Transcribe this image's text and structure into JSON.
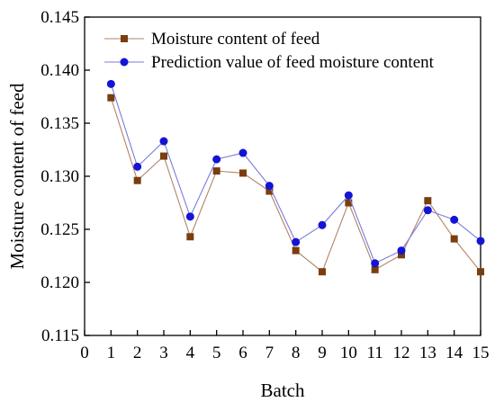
{
  "chart_data": {
    "type": "line",
    "title": "",
    "xlabel": "Batch",
    "ylabel": "Moisture content of feed",
    "xlim": [
      0,
      15
    ],
    "ylim": [
      0.115,
      0.145
    ],
    "x_ticks": [
      0,
      1,
      2,
      3,
      4,
      5,
      6,
      7,
      8,
      9,
      10,
      11,
      12,
      13,
      14,
      15
    ],
    "y_ticks": [
      0.115,
      0.12,
      0.125,
      0.13,
      0.135,
      0.14,
      0.145
    ],
    "y_tick_labels": [
      "0.115",
      "0.120",
      "0.125",
      "0.130",
      "0.135",
      "0.140",
      "0.145"
    ],
    "x": [
      1,
      2,
      3,
      4,
      5,
      6,
      7,
      8,
      9,
      10,
      11,
      12,
      13,
      14,
      15
    ],
    "grid": false,
    "legend_position": "top-left",
    "series": [
      {
        "name": "Moisture content of feed",
        "color": "#b08468",
        "marker_color": "#7a3d0e",
        "marker": "square",
        "values": [
          0.1374,
          0.1296,
          0.1319,
          0.1243,
          0.1305,
          0.1303,
          0.1286,
          0.123,
          0.121,
          0.1275,
          0.1212,
          0.1226,
          0.1277,
          0.1241,
          0.121
        ]
      },
      {
        "name": "Prediction value of feed moisture content",
        "color": "#7b7bd9",
        "marker_color": "#1414d6",
        "marker": "circle",
        "values": [
          0.1387,
          0.1309,
          0.1333,
          0.1262,
          0.1316,
          0.1322,
          0.1291,
          0.1238,
          0.1254,
          0.1282,
          0.1218,
          0.123,
          0.1268,
          0.1259,
          0.1239
        ]
      }
    ]
  }
}
